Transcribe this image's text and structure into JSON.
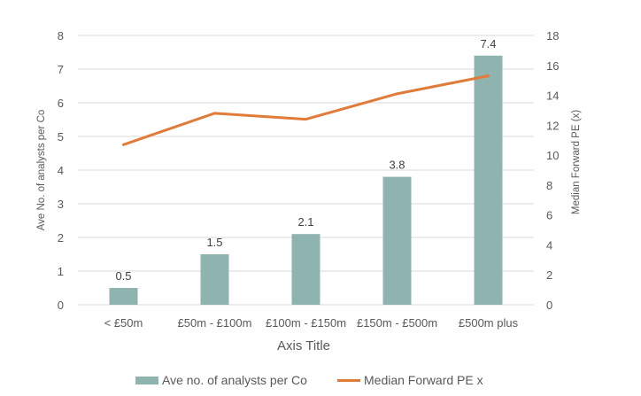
{
  "chart_data": {
    "type": "bar+line",
    "categories": [
      "< £50m",
      "£50m - £100m",
      "£100m - £150m",
      "£150m - £500m",
      "£500m plus"
    ],
    "xlabel": "Axis Title",
    "series": [
      {
        "name": "Ave no. of analysts per Co",
        "type": "bar",
        "axis": "left",
        "values": [
          0.5,
          1.5,
          2.1,
          3.8,
          7.4
        ],
        "data_labels": [
          "0.5",
          "1.5",
          "2.1",
          "3.8",
          "7.4"
        ],
        "color": "#8fb3ae"
      },
      {
        "name": "Median Forward PE x",
        "type": "line",
        "axis": "right",
        "values": [
          10.7,
          12.8,
          12.4,
          14.1,
          15.3
        ],
        "color": "#e07b39"
      }
    ],
    "y_left": {
      "label": "Ave No. of analysts per Co",
      "min": 0,
      "max": 8,
      "ticks": [
        "0",
        "1",
        "2",
        "3",
        "4",
        "5",
        "6",
        "7",
        "8"
      ]
    },
    "y_right": {
      "label": "Median Forward  PE (x)",
      "min": 0,
      "max": 18,
      "ticks": [
        "0",
        "2",
        "4",
        "6",
        "8",
        "10",
        "12",
        "14",
        "16",
        "18"
      ]
    },
    "grid": true,
    "legend_position": "bottom"
  }
}
